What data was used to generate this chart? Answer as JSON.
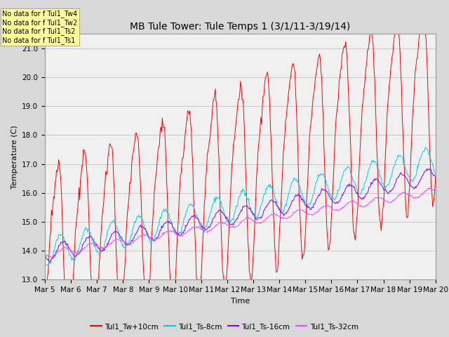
{
  "title": "MB Tule Tower: Tule Temps 1 (3/1/11-3/19/14)",
  "xlabel": "Time",
  "ylabel": "Temperature (C)",
  "ylim": [
    13.0,
    21.5
  ],
  "yticks": [
    13.0,
    14.0,
    15.0,
    16.0,
    17.0,
    18.0,
    19.0,
    20.0,
    21.0
  ],
  "xtick_labels": [
    "Mar 5",
    "Mar 6",
    "Mar 7",
    "Mar 8",
    "Mar 9",
    "Mar 10",
    "Mar 11",
    "Mar 12",
    "Mar 13",
    "Mar 14",
    "Mar 15",
    "Mar 16",
    "Mar 17",
    "Mar 18",
    "Mar 19",
    "Mar 20"
  ],
  "line_colors": {
    "Tw": "#ff0000",
    "Ts8": "#00ccff",
    "Ts16": "#8800ff",
    "Ts32": "#ff44ff"
  },
  "legend_labels": [
    "Tul1_Tw+10cm",
    "Tul1_Ts-8cm",
    "Tul1_Ts-16cm",
    "Tul1_Ts-32cm"
  ],
  "no_data_labels": [
    "No data for f Tul1_Tw4",
    "No data for f Tul1_Tw2",
    "No data for f Tul1_Ts2",
    "No data for f Tul1_Ts1"
  ],
  "no_data_box_color": "#ffff99",
  "background_color": "#d8d8d8",
  "plot_bg_color": "#f0f0f0",
  "title_fontsize": 10,
  "axis_label_fontsize": 8,
  "tick_fontsize": 7.5
}
